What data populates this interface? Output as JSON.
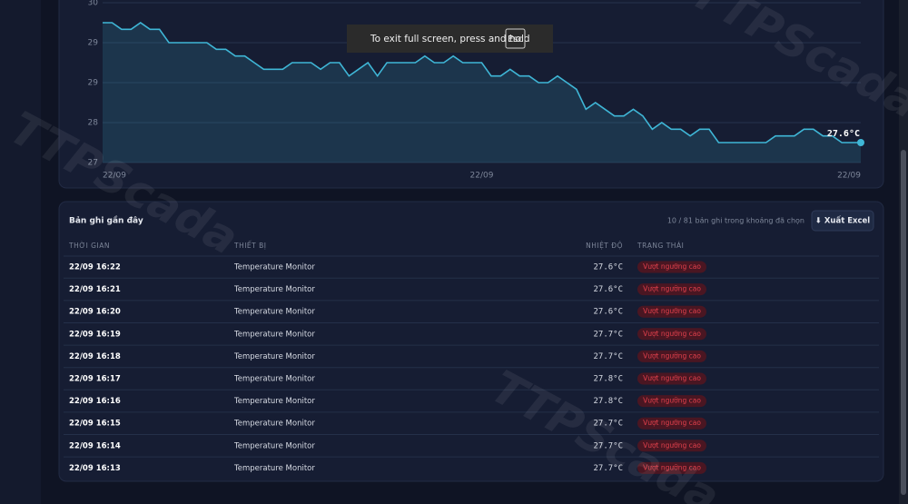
{
  "chart_data": {
    "type": "line",
    "categories": [
      "22/09",
      null,
      null,
      null,
      null,
      null,
      null,
      null,
      null,
      null,
      null,
      null,
      null,
      null,
      null,
      null,
      null,
      null,
      null,
      null,
      null,
      null,
      null,
      null,
      null,
      null,
      null,
      null,
      null,
      null,
      null,
      null,
      null,
      null,
      null,
      null,
      null,
      null,
      null,
      null,
      "22/09",
      null,
      null,
      null,
      null,
      null,
      null,
      null,
      null,
      null,
      null,
      null,
      null,
      null,
      null,
      null,
      null,
      null,
      null,
      null,
      null,
      null,
      null,
      null,
      null,
      null,
      null,
      null,
      null,
      null,
      null,
      null,
      null,
      null,
      null,
      null,
      null,
      null,
      null,
      null,
      "22/09"
    ],
    "values": [
      29.4,
      29.4,
      29.3,
      29.3,
      29.4,
      29.3,
      29.3,
      29.1,
      29.1,
      29.1,
      29.1,
      29.1,
      29.0,
      29.0,
      28.9,
      28.9,
      28.8,
      28.7,
      28.7,
      28.7,
      28.8,
      28.8,
      28.8,
      28.7,
      28.8,
      28.8,
      28.6,
      28.7,
      28.8,
      28.6,
      28.8,
      28.8,
      28.8,
      28.8,
      28.9,
      28.8,
      28.8,
      28.9,
      28.8,
      28.8,
      28.8,
      28.6,
      28.6,
      28.7,
      28.6,
      28.6,
      28.5,
      28.5,
      28.6,
      28.5,
      28.4,
      28.1,
      28.2,
      28.1,
      28.0,
      28.0,
      28.1,
      28.0,
      27.8,
      27.9,
      27.8,
      27.8,
      27.7,
      27.8,
      27.8,
      27.6,
      27.6,
      27.6,
      27.6,
      27.6,
      27.6,
      27.7,
      27.7,
      27.7,
      27.8,
      27.8,
      27.7,
      27.7,
      27.6,
      27.6,
      27.6
    ],
    "value_labels": [
      null,
      null,
      null,
      null,
      null,
      null,
      null,
      null,
      null,
      null,
      null,
      null,
      null,
      null,
      null,
      null,
      null,
      null,
      null,
      null,
      null,
      null,
      null,
      null,
      null,
      null,
      null,
      null,
      null,
      null,
      null,
      null,
      null,
      null,
      null,
      null,
      null,
      null,
      null,
      null,
      null,
      null,
      null,
      null,
      null,
      null,
      null,
      null,
      null,
      null,
      null,
      null,
      null,
      null,
      null,
      null,
      null,
      null,
      null,
      null,
      null,
      null,
      null,
      null,
      null,
      null,
      null,
      null,
      null,
      null,
      null,
      null,
      null,
      null,
      null,
      null,
      null,
      null,
      null,
      null,
      "27.6°C"
    ],
    "color": "#3fb6d6",
    "ylim": [
      27.3,
      29.7
    ],
    "yticks": [
      {
        "value": 27.3,
        "label": "27"
      },
      {
        "value": 27.9,
        "label": "28"
      },
      {
        "value": 28.5,
        "label": "29"
      },
      {
        "value": 29.1,
        "label": "29"
      },
      {
        "value": 29.7,
        "label": "30"
      }
    ],
    "grid": true
  },
  "table": {
    "title": "Bản ghi gần đây",
    "summary": "10 / 81 bản ghi trong khoảng đã chọn",
    "button": "⬇ Xuất Excel",
    "columns": [
      "THỜI GIAN",
      "THIẾT BỊ",
      "NHIỆT ĐỘ",
      "TRẠNG THÁI"
    ],
    "rows": [
      [
        "22/09 16:22",
        "Temperature Monitor",
        "27.6°C",
        "Vượt ngưỡng cao"
      ],
      [
        "22/09 16:21",
        "Temperature Monitor",
        "27.6°C",
        "Vượt ngưỡng cao"
      ],
      [
        "22/09 16:20",
        "Temperature Monitor",
        "27.6°C",
        "Vượt ngưỡng cao"
      ],
      [
        "22/09 16:19",
        "Temperature Monitor",
        "27.7°C",
        "Vượt ngưỡng cao"
      ],
      [
        "22/09 16:18",
        "Temperature Monitor",
        "27.7°C",
        "Vượt ngưỡng cao"
      ],
      [
        "22/09 16:17",
        "Temperature Monitor",
        "27.8°C",
        "Vượt ngưỡng cao"
      ],
      [
        "22/09 16:16",
        "Temperature Monitor",
        "27.8°C",
        "Vượt ngưỡng cao"
      ],
      [
        "22/09 16:15",
        "Temperature Monitor",
        "27.7°C",
        "Vượt ngưỡng cao"
      ],
      [
        "22/09 16:14",
        "Temperature Monitor",
        "27.7°C",
        "Vượt ngưỡng cao"
      ],
      [
        "22/09 16:13",
        "Temperature Monitor",
        "27.7°C",
        "Vượt ngưỡng cao"
      ]
    ]
  },
  "toast": {
    "text": "To exit full screen, press and hold",
    "key": "Esc"
  },
  "watermark": "TTPScada"
}
